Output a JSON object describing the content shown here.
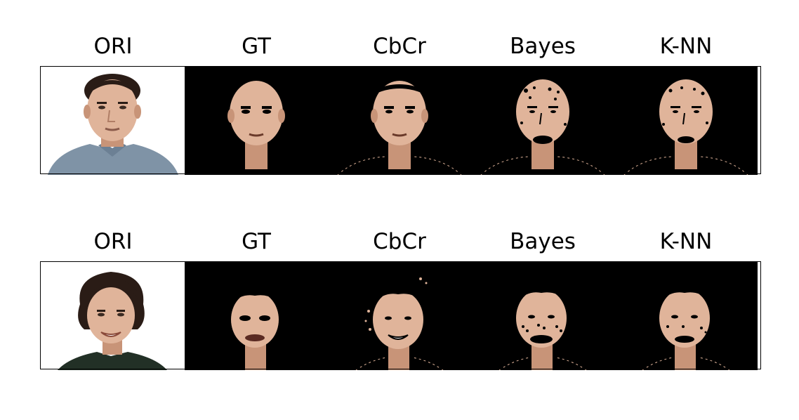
{
  "figure": {
    "rows": [
      {
        "titles": [
          "ORI",
          "GT",
          "CbCr",
          "Bayes",
          "K-NN"
        ],
        "subject": "man with short dark hair in grey-blue shirt"
      },
      {
        "titles": [
          "ORI",
          "GT",
          "CbCr",
          "Bayes",
          "K-NN"
        ],
        "subject": "smiling woman with curly dark hair in dark green top"
      }
    ],
    "colors": {
      "skin": "#e0b49a",
      "skin_shadow": "#c89478",
      "hair": "#2a1c16",
      "shirt_row1": "#7f93a6",
      "shirt_row2": "#223026",
      "mask_background": "#000000",
      "original_background": "#ffffff"
    }
  }
}
